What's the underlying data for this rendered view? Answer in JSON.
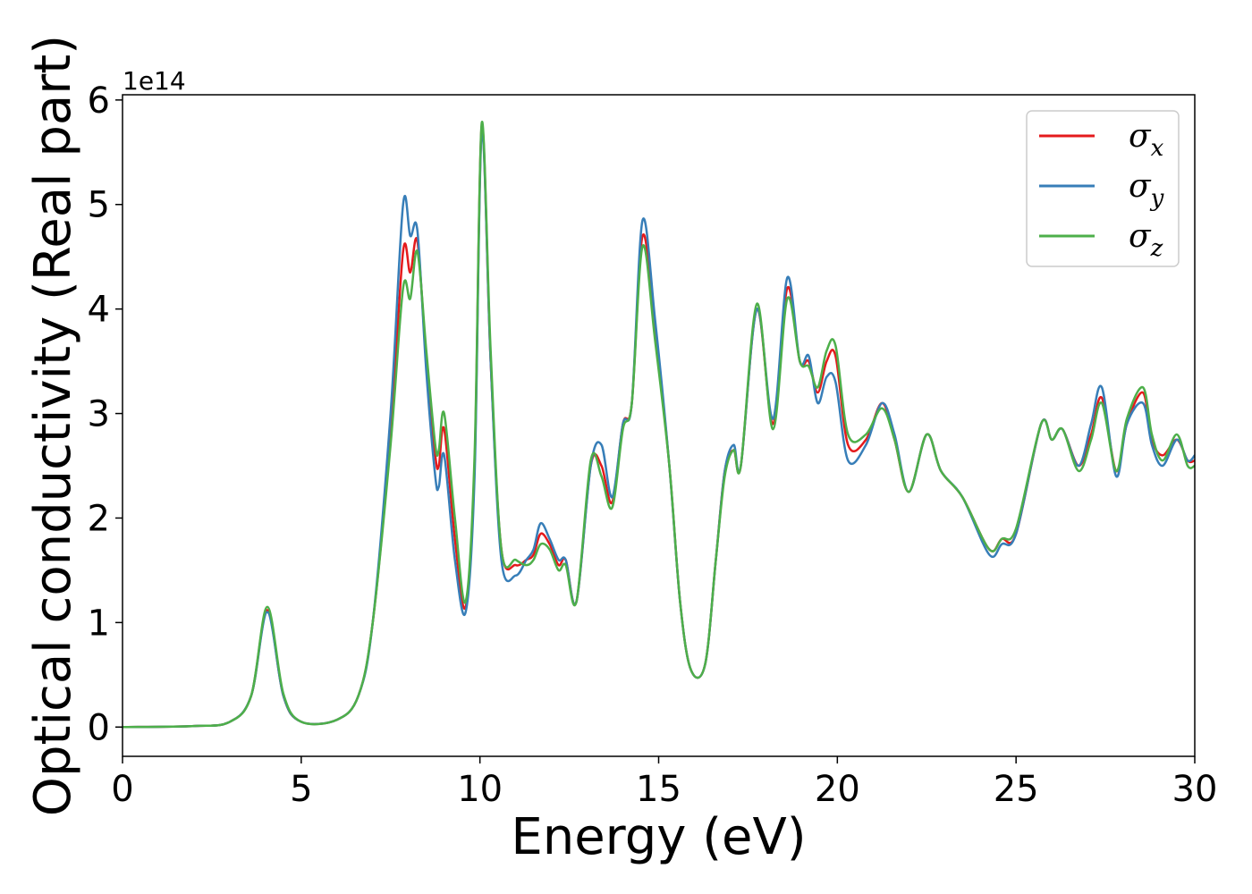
{
  "chart_data": {
    "type": "line",
    "xlabel": "Energy (eV)",
    "ylabel": "Optical conductivity (Real part)",
    "y_offset_text": "1e14",
    "xlim": [
      0,
      30
    ],
    "ylim": [
      -0.28,
      6.05
    ],
    "x_ticks": [
      0,
      5,
      10,
      15,
      20,
      25,
      30
    ],
    "x_tick_labels": [
      "0",
      "5",
      "10",
      "15",
      "20",
      "25",
      "30"
    ],
    "y_ticks": [
      0,
      1,
      2,
      3,
      4,
      5,
      6
    ],
    "y_tick_labels": [
      "0",
      "1",
      "2",
      "3",
      "4",
      "5",
      "6"
    ],
    "grid": false,
    "legend_position": "top-right",
    "series": [
      {
        "name": "σx",
        "base": "σ",
        "sub": "x",
        "color": "#e41a1c",
        "points": [
          [
            0,
            0
          ],
          [
            2,
            0.01
          ],
          [
            3,
            0.05
          ],
          [
            3.6,
            0.3
          ],
          [
            4.05,
            1.12
          ],
          [
            4.5,
            0.3
          ],
          [
            5,
            0.05
          ],
          [
            6,
            0.07
          ],
          [
            6.6,
            0.3
          ],
          [
            7,
            1.0
          ],
          [
            7.5,
            2.8
          ],
          [
            7.85,
            4.55
          ],
          [
            8.05,
            4.35
          ],
          [
            8.25,
            4.65
          ],
          [
            8.5,
            3.5
          ],
          [
            8.75,
            2.6
          ],
          [
            8.85,
            2.5
          ],
          [
            9,
            2.85
          ],
          [
            9.3,
            1.8
          ],
          [
            9.6,
            1.15
          ],
          [
            9.85,
            2.5
          ],
          [
            10.05,
            5.75
          ],
          [
            10.3,
            3.5
          ],
          [
            10.6,
            1.7
          ],
          [
            11,
            1.55
          ],
          [
            11.3,
            1.6
          ],
          [
            11.5,
            1.65
          ],
          [
            11.7,
            1.85
          ],
          [
            11.95,
            1.75
          ],
          [
            12.2,
            1.55
          ],
          [
            12.4,
            1.6
          ],
          [
            12.7,
            1.2
          ],
          [
            13.1,
            2.5
          ],
          [
            13.4,
            2.5
          ],
          [
            13.7,
            2.15
          ],
          [
            14,
            2.9
          ],
          [
            14.25,
            3.1
          ],
          [
            14.55,
            4.7
          ],
          [
            14.9,
            3.8
          ],
          [
            15.3,
            2.5
          ],
          [
            15.6,
            1.2
          ],
          [
            15.9,
            0.55
          ],
          [
            16.3,
            0.6
          ],
          [
            16.6,
            1.6
          ],
          [
            16.85,
            2.45
          ],
          [
            17.1,
            2.65
          ],
          [
            17.3,
            2.5
          ],
          [
            17.75,
            4.0
          ],
          [
            18.2,
            2.9
          ],
          [
            18.6,
            4.2
          ],
          [
            18.95,
            3.5
          ],
          [
            19.2,
            3.5
          ],
          [
            19.45,
            3.2
          ],
          [
            19.7,
            3.5
          ],
          [
            19.95,
            3.55
          ],
          [
            20.3,
            2.7
          ],
          [
            20.8,
            2.75
          ],
          [
            21.25,
            3.1
          ],
          [
            21.6,
            2.75
          ],
          [
            22,
            2.25
          ],
          [
            22.5,
            2.8
          ],
          [
            22.9,
            2.45
          ],
          [
            23.5,
            2.2
          ],
          [
            24.25,
            1.7
          ],
          [
            24.6,
            1.8
          ],
          [
            25,
            1.85
          ],
          [
            25.7,
            2.9
          ],
          [
            26,
            2.75
          ],
          [
            26.3,
            2.85
          ],
          [
            26.75,
            2.5
          ],
          [
            27.1,
            2.8
          ],
          [
            27.4,
            3.15
          ],
          [
            27.8,
            2.45
          ],
          [
            28.1,
            2.9
          ],
          [
            28.55,
            3.2
          ],
          [
            28.8,
            2.75
          ],
          [
            29.1,
            2.6
          ],
          [
            29.5,
            2.75
          ],
          [
            29.8,
            2.55
          ],
          [
            30,
            2.55
          ]
        ]
      },
      {
        "name": "σy",
        "base": "σ",
        "sub": "y",
        "color": "#377eb8",
        "points": [
          [
            0,
            0
          ],
          [
            2,
            0.01
          ],
          [
            3,
            0.05
          ],
          [
            3.6,
            0.3
          ],
          [
            4.05,
            1.1
          ],
          [
            4.5,
            0.3
          ],
          [
            5,
            0.05
          ],
          [
            6,
            0.07
          ],
          [
            6.6,
            0.3
          ],
          [
            7,
            1.0
          ],
          [
            7.5,
            3.0
          ],
          [
            7.85,
            5.0
          ],
          [
            8.05,
            4.7
          ],
          [
            8.25,
            4.75
          ],
          [
            8.5,
            3.4
          ],
          [
            8.75,
            2.4
          ],
          [
            8.85,
            2.3
          ],
          [
            9,
            2.6
          ],
          [
            9.3,
            1.6
          ],
          [
            9.6,
            1.1
          ],
          [
            9.85,
            2.4
          ],
          [
            10.05,
            5.7
          ],
          [
            10.3,
            3.5
          ],
          [
            10.6,
            1.6
          ],
          [
            11,
            1.45
          ],
          [
            11.3,
            1.6
          ],
          [
            11.5,
            1.7
          ],
          [
            11.7,
            1.95
          ],
          [
            11.95,
            1.8
          ],
          [
            12.2,
            1.6
          ],
          [
            12.4,
            1.6
          ],
          [
            12.7,
            1.2
          ],
          [
            13.1,
            2.5
          ],
          [
            13.4,
            2.7
          ],
          [
            13.7,
            2.2
          ],
          [
            14,
            2.9
          ],
          [
            14.25,
            3.1
          ],
          [
            14.55,
            4.85
          ],
          [
            14.9,
            3.9
          ],
          [
            15.3,
            2.5
          ],
          [
            15.6,
            1.2
          ],
          [
            15.9,
            0.55
          ],
          [
            16.3,
            0.6
          ],
          [
            16.6,
            1.6
          ],
          [
            16.85,
            2.45
          ],
          [
            17.1,
            2.7
          ],
          [
            17.3,
            2.5
          ],
          [
            17.75,
            4.0
          ],
          [
            18.2,
            2.95
          ],
          [
            18.6,
            4.3
          ],
          [
            18.95,
            3.5
          ],
          [
            19.2,
            3.55
          ],
          [
            19.45,
            3.1
          ],
          [
            19.7,
            3.35
          ],
          [
            19.95,
            3.3
          ],
          [
            20.3,
            2.55
          ],
          [
            20.8,
            2.7
          ],
          [
            21.25,
            3.1
          ],
          [
            21.6,
            2.8
          ],
          [
            22,
            2.25
          ],
          [
            22.5,
            2.8
          ],
          [
            22.9,
            2.45
          ],
          [
            23.5,
            2.2
          ],
          [
            24.25,
            1.65
          ],
          [
            24.6,
            1.75
          ],
          [
            25,
            1.85
          ],
          [
            25.7,
            2.9
          ],
          [
            26,
            2.75
          ],
          [
            26.3,
            2.85
          ],
          [
            26.75,
            2.5
          ],
          [
            27.1,
            2.9
          ],
          [
            27.4,
            3.25
          ],
          [
            27.8,
            2.4
          ],
          [
            28.1,
            2.9
          ],
          [
            28.55,
            3.1
          ],
          [
            28.8,
            2.7
          ],
          [
            29.1,
            2.5
          ],
          [
            29.5,
            2.75
          ],
          [
            29.8,
            2.55
          ],
          [
            30,
            2.6
          ]
        ]
      },
      {
        "name": "σz",
        "base": "σ",
        "sub": "z",
        "color": "#4daf4a",
        "points": [
          [
            0,
            0
          ],
          [
            2,
            0.01
          ],
          [
            3,
            0.05
          ],
          [
            3.6,
            0.3
          ],
          [
            4.05,
            1.15
          ],
          [
            4.5,
            0.32
          ],
          [
            5,
            0.05
          ],
          [
            6,
            0.07
          ],
          [
            6.6,
            0.3
          ],
          [
            7,
            1.0
          ],
          [
            7.5,
            2.7
          ],
          [
            7.85,
            4.2
          ],
          [
            8.05,
            4.1
          ],
          [
            8.25,
            4.55
          ],
          [
            8.5,
            3.6
          ],
          [
            8.75,
            2.7
          ],
          [
            8.85,
            2.65
          ],
          [
            9,
            3.0
          ],
          [
            9.3,
            2.0
          ],
          [
            9.6,
            1.2
          ],
          [
            9.85,
            2.6
          ],
          [
            10.05,
            5.78
          ],
          [
            10.3,
            3.6
          ],
          [
            10.6,
            1.7
          ],
          [
            11,
            1.6
          ],
          [
            11.3,
            1.55
          ],
          [
            11.5,
            1.6
          ],
          [
            11.7,
            1.75
          ],
          [
            11.95,
            1.7
          ],
          [
            12.2,
            1.5
          ],
          [
            12.4,
            1.55
          ],
          [
            12.7,
            1.2
          ],
          [
            13.1,
            2.55
          ],
          [
            13.4,
            2.4
          ],
          [
            13.7,
            2.1
          ],
          [
            14,
            2.85
          ],
          [
            14.25,
            3.1
          ],
          [
            14.55,
            4.6
          ],
          [
            14.9,
            3.7
          ],
          [
            15.3,
            2.5
          ],
          [
            15.6,
            1.2
          ],
          [
            15.9,
            0.55
          ],
          [
            16.3,
            0.6
          ],
          [
            16.6,
            1.6
          ],
          [
            16.85,
            2.4
          ],
          [
            17.1,
            2.65
          ],
          [
            17.3,
            2.5
          ],
          [
            17.75,
            4.05
          ],
          [
            18.2,
            2.85
          ],
          [
            18.6,
            4.1
          ],
          [
            18.95,
            3.5
          ],
          [
            19.2,
            3.45
          ],
          [
            19.45,
            3.25
          ],
          [
            19.7,
            3.6
          ],
          [
            19.95,
            3.65
          ],
          [
            20.3,
            2.8
          ],
          [
            20.8,
            2.8
          ],
          [
            21.25,
            3.05
          ],
          [
            21.6,
            2.75
          ],
          [
            22,
            2.25
          ],
          [
            22.5,
            2.8
          ],
          [
            22.9,
            2.45
          ],
          [
            23.5,
            2.2
          ],
          [
            24.25,
            1.7
          ],
          [
            24.6,
            1.8
          ],
          [
            25,
            1.9
          ],
          [
            25.7,
            2.9
          ],
          [
            26,
            2.75
          ],
          [
            26.3,
            2.85
          ],
          [
            26.75,
            2.45
          ],
          [
            27.1,
            2.75
          ],
          [
            27.4,
            3.1
          ],
          [
            27.8,
            2.45
          ],
          [
            28.1,
            2.95
          ],
          [
            28.55,
            3.25
          ],
          [
            28.8,
            2.8
          ],
          [
            29.1,
            2.55
          ],
          [
            29.5,
            2.8
          ],
          [
            29.8,
            2.5
          ],
          [
            30,
            2.5
          ]
        ]
      }
    ]
  }
}
